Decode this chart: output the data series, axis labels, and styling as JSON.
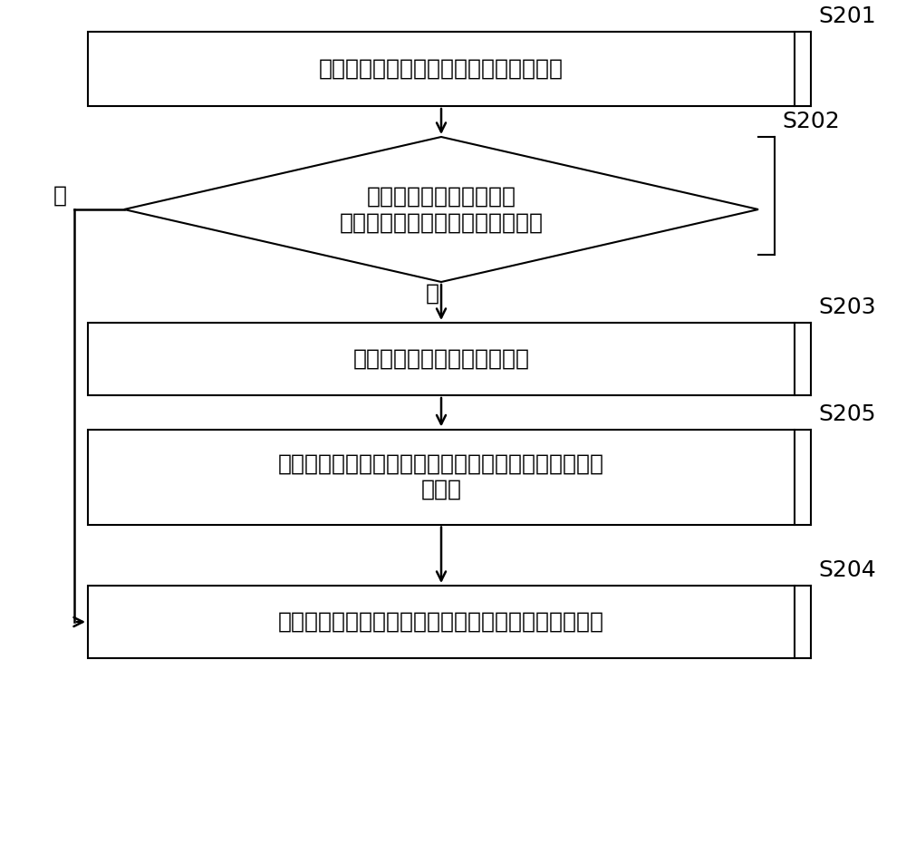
{
  "bg_color": "#ffffff",
  "box_edge_color": "#000000",
  "box_fill_color": "#ffffff",
  "arrow_color": "#000000",
  "step_labels": [
    "S201",
    "S202",
    "S203",
    "S205",
    "S204"
  ],
  "box1_text": "监听携带有交易场景字段信息的交易信息",
  "diamond_line1": "查询缓存中是否存储有与",
  "diamond_line2": "交易场景字段信息一致的交易信息",
  "box3_text": "确定交易行为是拆单交易行为",
  "box5_line1": "触发监控预警信息，以便通过人工干预方式制止拆单交",
  "box5_line2": "易支付",
  "box4_text": "将以交易场景字段信息为主键的交易信息存储到缓存中",
  "yes_label": "是",
  "no_label": "否",
  "font_size": 18,
  "label_font_size": 18
}
